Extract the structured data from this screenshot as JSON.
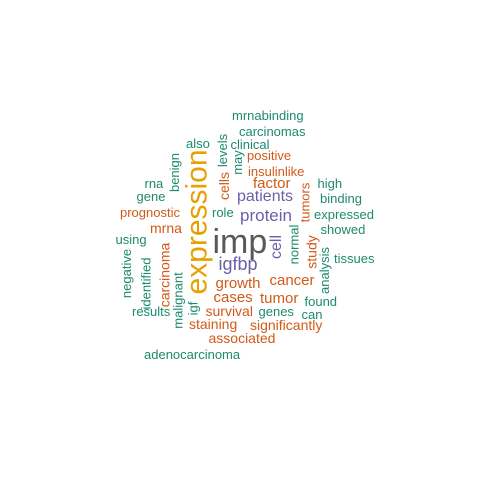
{
  "palette": {
    "gray": "#595959",
    "orange": "#E6A000",
    "purple": "#6A5FA8",
    "red": "#D25A18",
    "green": "#1D8A6E"
  },
  "words": [
    {
      "text": "mrnabinding",
      "color": "green"
    },
    {
      "text": "carcinomas",
      "color": "green"
    },
    {
      "text": "also",
      "color": "green"
    },
    {
      "text": "clinical",
      "color": "green"
    },
    {
      "text": "levels",
      "color": "green"
    },
    {
      "text": "may",
      "color": "green"
    },
    {
      "text": "positive",
      "color": "red"
    },
    {
      "text": "benign",
      "color": "green"
    },
    {
      "text": "expression",
      "color": "orange"
    },
    {
      "text": "insulinlike",
      "color": "red"
    },
    {
      "text": "rna",
      "color": "green"
    },
    {
      "text": "cells",
      "color": "red"
    },
    {
      "text": "factor",
      "color": "red"
    },
    {
      "text": "high",
      "color": "green"
    },
    {
      "text": "gene",
      "color": "green"
    },
    {
      "text": "patients",
      "color": "purple"
    },
    {
      "text": "tumors",
      "color": "red"
    },
    {
      "text": "binding",
      "color": "green"
    },
    {
      "text": "prognostic",
      "color": "red"
    },
    {
      "text": "role",
      "color": "green"
    },
    {
      "text": "protein",
      "color": "purple"
    },
    {
      "text": "expressed",
      "color": "green"
    },
    {
      "text": "mrna",
      "color": "red"
    },
    {
      "text": "cell",
      "color": "purple"
    },
    {
      "text": "showed",
      "color": "green"
    },
    {
      "text": "using",
      "color": "green"
    },
    {
      "text": "imp",
      "color": "gray"
    },
    {
      "text": "normal",
      "color": "green"
    },
    {
      "text": "study",
      "color": "red"
    },
    {
      "text": "tissues",
      "color": "green"
    },
    {
      "text": "negative",
      "color": "green"
    },
    {
      "text": "identified",
      "color": "green"
    },
    {
      "text": "carcinoma",
      "color": "red"
    },
    {
      "text": "malignant",
      "color": "green"
    },
    {
      "text": "igf",
      "color": "green"
    },
    {
      "text": "igfbp",
      "color": "purple"
    },
    {
      "text": "analysis",
      "color": "green"
    },
    {
      "text": "cancer",
      "color": "red"
    },
    {
      "text": "growth",
      "color": "red"
    },
    {
      "text": "cases",
      "color": "red"
    },
    {
      "text": "tumor",
      "color": "red"
    },
    {
      "text": "found",
      "color": "green"
    },
    {
      "text": "results",
      "color": "green"
    },
    {
      "text": "survival",
      "color": "red"
    },
    {
      "text": "genes",
      "color": "green"
    },
    {
      "text": "can",
      "color": "green"
    },
    {
      "text": "staining",
      "color": "red"
    },
    {
      "text": "significantly",
      "color": "red"
    },
    {
      "text": "associated",
      "color": "red"
    },
    {
      "text": "adenocarcinoma",
      "color": "green"
    }
  ]
}
